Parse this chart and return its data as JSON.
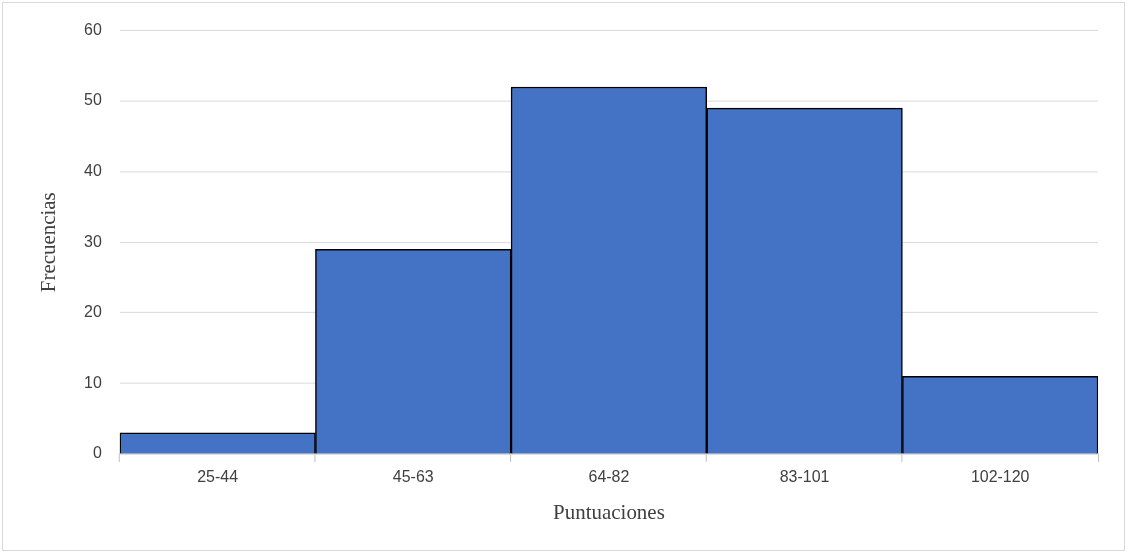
{
  "chart_data": {
    "type": "bar",
    "xlabel": "Puntuaciones",
    "ylabel": "Frecuencias",
    "categories": [
      "25-44",
      "45-63",
      "64-82",
      "83-101",
      "102-120"
    ],
    "values": [
      3,
      29,
      52,
      49,
      11
    ],
    "color": "#4472c4",
    "ylim": [
      0,
      60
    ],
    "yticks": [
      0,
      10,
      20,
      30,
      40,
      50,
      60
    ],
    "grid": "y"
  }
}
